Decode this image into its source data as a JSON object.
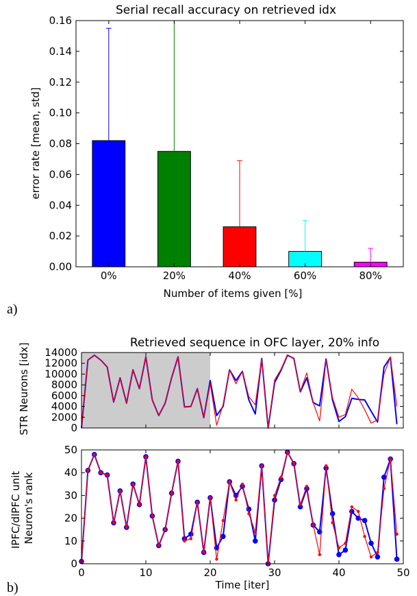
{
  "panel_labels": [
    "a)",
    "b)"
  ],
  "chart_data": [
    {
      "type": "bar",
      "title": "Serial recall accuracy on retrieved idx",
      "xlabel": "Number of items given [%]",
      "ylabel": "error rate [mean, std]",
      "categories": [
        "0%",
        "20%",
        "40%",
        "60%",
        "80%"
      ],
      "values": [
        0.082,
        0.075,
        0.026,
        0.01,
        0.003
      ],
      "errors": [
        0.073,
        0.085,
        0.043,
        0.02,
        0.009
      ],
      "colors": [
        "#0000ff",
        "#008000",
        "#ff0000",
        "#00ffff",
        "#ff00ff"
      ],
      "ylim": [
        0,
        0.16
      ],
      "yticks": [
        "0.00",
        "0.02",
        "0.04",
        "0.06",
        "0.08",
        "0.10",
        "0.12",
        "0.14",
        "0.16"
      ],
      "grid": false
    },
    {
      "type": "line",
      "title": "Retrieved sequence in OFC layer, 20% info",
      "ylabel": "STR Neurons [idx]",
      "xlim": [
        0,
        50
      ],
      "ylim": [
        0,
        14000
      ],
      "yticks": [
        "0",
        "2000",
        "4000",
        "6000",
        "8000",
        "10000",
        "12000",
        "14000"
      ],
      "shaded_region": [
        0,
        20
      ],
      "shaded_color": "#cccccc",
      "series": [
        {
          "color": "#0000ff",
          "values": [
            0,
            12600,
            13500,
            12600,
            11300,
            4800,
            9300,
            4600,
            10800,
            7300,
            13200,
            5200,
            2300,
            4600,
            9300,
            13200,
            3900,
            4000,
            7300,
            1900,
            8800,
            2300,
            4000,
            10800,
            8800,
            10500,
            5200,
            2600,
            12900,
            0,
            8400,
            10700,
            13500,
            12900,
            6700,
            9300,
            4700,
            4100,
            12800,
            5200,
            1200,
            2100,
            5500,
            5300,
            5200,
            3100,
            1100,
            11300,
            13100,
            700
          ]
        },
        {
          "color": "#ff0000",
          "values": [
            0,
            12600,
            13500,
            12600,
            11300,
            4800,
            9300,
            4600,
            10800,
            7300,
            13200,
            5200,
            2300,
            4600,
            9300,
            13200,
            3900,
            4000,
            7300,
            1900,
            8200,
            500,
            4300,
            10800,
            8200,
            10500,
            5800,
            4300,
            12800,
            0,
            8900,
            10900,
            13600,
            12800,
            6800,
            10200,
            4700,
            1300,
            12600,
            5600,
            2000,
            2500,
            7200,
            5600,
            3400,
            900,
            1500,
            10000,
            13200,
            4000
          ]
        }
      ]
    },
    {
      "type": "line",
      "xlabel": "Time [iter]",
      "ylabel": "IPFC/dlPFC unit\nNeuron's rank",
      "xlim": [
        0,
        50
      ],
      "ylim": [
        0,
        50
      ],
      "xticks": [
        "0",
        "10",
        "20",
        "30",
        "40",
        "50"
      ],
      "yticks": [
        "0",
        "10",
        "20",
        "30",
        "40",
        "50"
      ],
      "series": [
        {
          "color": "#0000ff",
          "marker": "large",
          "values": [
            1,
            41,
            48,
            40,
            39,
            18,
            32,
            16,
            35,
            26,
            47,
            21,
            8,
            15,
            31,
            45,
            11,
            13,
            27,
            5,
            29,
            7,
            12,
            36,
            30,
            34,
            24,
            10,
            43,
            0,
            28,
            37,
            49,
            44,
            25,
            33,
            17,
            14,
            42,
            22,
            4,
            6,
            23,
            20,
            19,
            9,
            3,
            38,
            46,
            2
          ]
        },
        {
          "color": "#ff0000",
          "marker": "small",
          "values": [
            1,
            41,
            48,
            40,
            39,
            18,
            32,
            16,
            35,
            26,
            47,
            21,
            8,
            15,
            31,
            45,
            10,
            11,
            27,
            5,
            29,
            2,
            19,
            36,
            28,
            35,
            22,
            14,
            43,
            0,
            30,
            38,
            49,
            44,
            26,
            34,
            17,
            4,
            43,
            18,
            7,
            9,
            25,
            23,
            12,
            3,
            5,
            33,
            46,
            13
          ]
        }
      ]
    }
  ]
}
